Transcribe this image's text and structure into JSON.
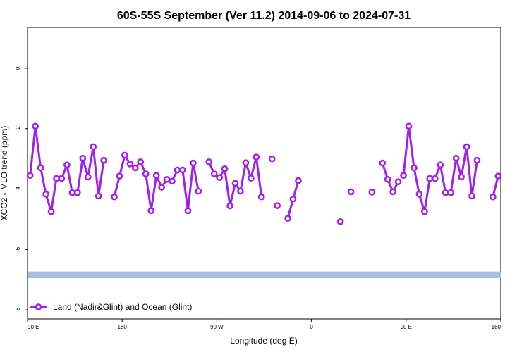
{
  "chart_data": {
    "type": "line",
    "title": "60S-55S September (Ver 11.2)   2014-09-06 to 2024-07-31",
    "xlabel": "Longitude (deg E)",
    "ylabel": "XCO2 - MLO trend (ppm)",
    "xlim": [
      90,
      540
    ],
    "ylim": [
      -8.3,
      1.35
    ],
    "x_ticks": [
      {
        "value": 90,
        "label": "90 E"
      },
      {
        "value": 180,
        "label": "180"
      },
      {
        "value": 270,
        "label": "90 W"
      },
      {
        "value": 360,
        "label": "0"
      },
      {
        "value": 450,
        "label": "90 E"
      },
      {
        "value": 540,
        "label": "180"
      }
    ],
    "y_ticks": [
      {
        "value": 0,
        "label": "0"
      },
      {
        "value": -2,
        "label": "-2"
      },
      {
        "value": -4,
        "label": "-4"
      },
      {
        "value": -6,
        "label": "-6"
      },
      {
        "value": -8,
        "label": "-8"
      }
    ],
    "grid": false,
    "legend": {
      "position": "bottom-left",
      "label": "Land (Nadir&Glint) and Ocean (Glint)"
    },
    "band": {
      "y_from": -6.95,
      "y_to": -6.73,
      "color": "#a8bfe0"
    },
    "series": [
      {
        "name": "Land (Nadir&Glint) and Ocean (Glint)",
        "color": "#a020f0",
        "x": [
          92.5,
          97.5,
          102.5,
          107.5,
          112.5,
          117.5,
          122.5,
          127.5,
          132.5,
          137.5,
          142.5,
          147.5,
          152.5,
          157.5,
          162.5,
          167.5,
          null,
          172.5,
          177.5,
          182.5,
          187.5,
          192.5,
          197.5,
          202.5,
          207.5,
          212.5,
          217.5,
          222.5,
          227.5,
          232.5,
          237.5,
          242.5,
          247.5,
          252.5,
          null,
          262.5,
          267.5,
          272.5,
          277.5,
          282.5,
          287.5,
          292.5,
          297.5,
          302.5,
          307.5,
          312.5,
          317.5,
          322.5,
          null,
          327.5,
          332.5,
          null,
          337.5,
          342.5,
          347.5,
          null,
          387.5,
          null,
          397.5,
          null,
          417.5,
          null,
          427.5,
          432.5,
          437.5,
          442.5,
          null,
          447.5,
          452.5,
          457.5,
          462.5,
          467.5,
          472.5,
          477.5,
          482.5,
          487.5,
          492.5,
          497.5,
          502.5,
          507.5,
          512.5,
          517.5,
          522.5,
          null,
          532.5,
          537.5
        ],
        "y": [
          -3.55,
          -1.92,
          -3.3,
          -4.17,
          -4.75,
          -3.65,
          -3.65,
          -3.2,
          -4.12,
          -4.12,
          -2.98,
          -3.6,
          -2.6,
          -4.23,
          -3.05,
          null,
          null,
          -4.26,
          -3.57,
          -2.88,
          -3.17,
          -3.3,
          -3.1,
          -3.5,
          -4.72,
          -3.55,
          -3.94,
          -3.68,
          -3.74,
          -3.37,
          -3.37,
          -4.72,
          -3.14,
          -4.07,
          null,
          -3.1,
          -3.5,
          -3.62,
          -3.33,
          -4.56,
          -3.81,
          -4.07,
          -3.13,
          -3.64,
          -2.94,
          -4.26,
          null,
          -3.0,
          null,
          -4.55,
          null,
          null,
          -4.97,
          -4.33,
          -3.72,
          null,
          -5.08,
          null,
          -4.09,
          null,
          -4.1,
          null,
          -3.14,
          -3.68,
          -4.09,
          -3.76,
          null,
          -3.55,
          -1.92,
          -3.3,
          -4.17,
          -4.75,
          -3.65,
          -3.65,
          -3.2,
          -4.12,
          -4.12,
          -2.98,
          -3.6,
          -2.6,
          -4.23,
          -3.05,
          null,
          null,
          -4.26,
          -3.57
        ]
      }
    ]
  }
}
